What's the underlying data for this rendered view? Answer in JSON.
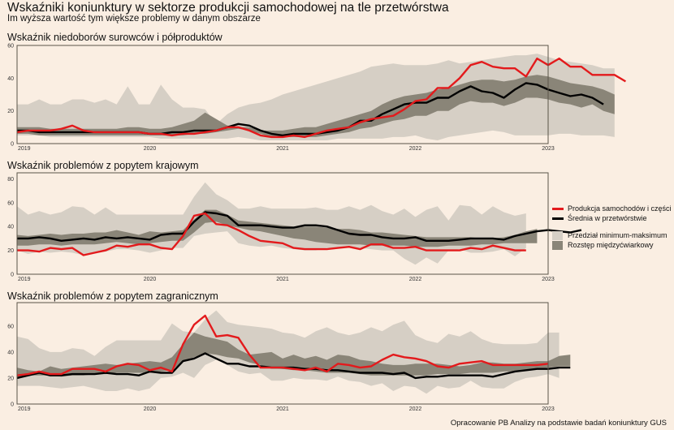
{
  "header": {
    "title": "Wskaźniki koniunktury w sektorze produkcji samochodowej na tle przetwórstwa",
    "subtitle": "Im wyższa wartość tym większe problemy w danym obszarze"
  },
  "source": "Opracowanie PB Analizy na podstawie badań koniunktury GUS",
  "legend": {
    "items": [
      {
        "label": "Produkcja samochodów i części",
        "kind": "line",
        "color": "#e31a1c"
      },
      {
        "label": "Średnia w przetwórstwie",
        "kind": "line",
        "color": "#000000"
      },
      {
        "label": "Przedział minimum-maksimum",
        "kind": "band",
        "color": "#d6cfc5"
      },
      {
        "label": "Rozstęp międzyćwiarkowy",
        "kind": "band",
        "color": "#8a8578"
      }
    ]
  },
  "colors": {
    "background": "#faeee2",
    "auto": "#e31a1c",
    "mean": "#000000",
    "minmax": "#d6cfc5",
    "iqr": "#8a8578"
  },
  "chart_data": [
    {
      "type": "line",
      "title": "Wskaźnik niedoborów surowców i półproduktów",
      "x_start": "2019-01",
      "x_end": "2022-11",
      "frequency": "monthly",
      "xticks": [
        "2019",
        "2020",
        "2021",
        "2022",
        "2023"
      ],
      "yticks": [
        0,
        20,
        40,
        60
      ],
      "ylim": [
        0,
        60
      ],
      "series": [
        {
          "name": "Produkcja samochodów i części",
          "values": [
            7,
            8,
            8,
            8,
            9,
            11,
            8,
            7,
            7,
            7,
            7,
            7,
            6,
            6,
            5,
            6,
            6,
            7,
            8,
            10,
            10,
            8,
            5,
            4,
            4,
            5,
            4,
            6,
            8,
            9,
            10,
            13,
            15,
            16,
            17,
            21,
            26,
            27,
            34,
            34,
            40,
            48,
            50,
            47,
            46,
            46,
            41,
            52,
            48,
            52,
            47,
            47,
            42,
            42,
            42,
            38
          ]
        },
        {
          "name": "Średnia w przetwórstwie",
          "values": [
            8,
            8,
            7,
            7,
            7,
            7,
            7,
            7,
            7,
            7,
            7,
            7,
            6,
            6,
            7,
            7,
            8,
            8,
            8,
            10,
            12,
            11,
            8,
            6,
            5,
            6,
            6,
            6,
            7,
            8,
            10,
            14,
            14,
            18,
            21,
            24,
            25,
            25,
            28,
            28,
            32,
            35,
            32,
            31,
            28,
            33,
            37,
            36,
            33,
            31,
            29,
            30,
            28,
            24
          ]
        },
        {
          "name": "Min",
          "values": [
            5,
            5,
            5,
            4,
            4,
            4,
            4,
            4,
            4,
            4,
            4,
            4,
            4,
            3,
            3,
            3,
            3,
            3,
            3,
            3,
            4,
            3,
            2,
            2,
            2,
            2,
            2,
            2,
            2,
            3,
            3,
            3,
            3,
            3,
            4,
            4,
            5,
            3,
            2,
            4,
            5,
            6,
            7,
            8,
            7,
            5,
            5,
            5,
            5,
            6,
            6,
            5,
            5,
            5,
            4,
            2,
            1
          ]
        },
        {
          "name": "Max",
          "values": [
            24,
            24,
            27,
            24,
            24,
            27,
            27,
            25,
            27,
            24,
            35,
            24,
            24,
            36,
            27,
            22,
            22,
            21,
            12,
            18,
            22,
            24,
            25,
            27,
            30,
            32,
            34,
            36,
            38,
            40,
            42,
            44,
            47,
            48,
            49,
            48,
            48,
            48,
            49,
            51,
            49,
            50,
            51,
            52,
            53,
            54,
            54,
            55,
            53,
            51,
            50,
            49,
            48,
            46,
            46
          ]
        },
        {
          "name": "Q1",
          "values": [
            6,
            6,
            5,
            5,
            5,
            5,
            5,
            5,
            5,
            5,
            5,
            5,
            5,
            5,
            5,
            5,
            6,
            6,
            7,
            8,
            9,
            8,
            6,
            4,
            4,
            4,
            4,
            4,
            5,
            6,
            7,
            9,
            10,
            12,
            14,
            15,
            17,
            17,
            20,
            20,
            24,
            26,
            25,
            25,
            23,
            25,
            28,
            28,
            27,
            25,
            24,
            22,
            24,
            20,
            18,
            17
          ]
        },
        {
          "name": "Q3",
          "values": [
            10,
            10,
            10,
            9,
            9,
            9,
            9,
            9,
            9,
            9,
            10,
            10,
            9,
            9,
            10,
            12,
            14,
            19,
            15,
            11,
            10,
            10,
            8,
            8,
            8,
            9,
            10,
            10,
            12,
            14,
            16,
            18,
            20,
            24,
            27,
            29,
            30,
            31,
            33,
            34,
            36,
            38,
            39,
            39,
            38,
            39,
            41,
            42,
            41,
            39,
            37,
            36,
            35,
            33,
            30
          ]
        }
      ]
    },
    {
      "type": "line",
      "title": "Wskaźnik problemów z popytem krajowym",
      "x_start": "2019-01",
      "x_end": "2022-11",
      "frequency": "monthly",
      "xticks": [
        "2019",
        "2020",
        "2021",
        "2022",
        "2023"
      ],
      "yticks": [
        0,
        20,
        40,
        60,
        80
      ],
      "ylim": [
        0,
        85
      ],
      "series": [
        {
          "name": "Produkcja samochodów i części",
          "values": [
            20,
            20,
            19,
            22,
            21,
            22,
            16,
            18,
            20,
            24,
            23,
            25,
            25,
            22,
            21,
            32,
            49,
            51,
            42,
            41,
            37,
            32,
            28,
            27,
            26,
            22,
            21,
            21,
            21,
            22,
            23,
            21,
            25,
            25,
            22,
            22,
            23,
            20,
            20,
            20,
            20,
            22,
            21,
            24,
            22,
            20,
            20
          ]
        },
        {
          "name": "Średnia w przetwórstwie",
          "values": [
            30,
            30,
            31,
            30,
            28,
            29,
            30,
            29,
            31,
            30,
            31,
            30,
            29,
            33,
            34,
            34,
            44,
            52,
            51,
            49,
            41,
            41,
            41,
            40,
            39,
            39,
            41,
            41,
            40,
            37,
            34,
            33,
            33,
            31,
            30,
            30,
            31,
            28,
            28,
            28,
            29,
            30,
            30,
            30,
            29,
            32,
            34,
            36,
            37,
            36,
            35,
            37
          ]
        },
        {
          "name": "Min",
          "values": [
            20,
            17,
            19,
            18,
            19,
            18,
            16,
            18,
            19,
            21,
            21,
            20,
            18,
            20,
            22,
            22,
            32,
            34,
            35,
            36,
            26,
            24,
            23,
            24,
            22,
            21,
            20,
            20,
            22,
            22,
            23,
            22,
            21,
            20,
            20,
            13,
            8,
            14,
            9,
            20,
            21,
            18,
            18,
            19,
            21,
            15,
            22
          ]
        },
        {
          "name": "Max",
          "values": [
            57,
            50,
            53,
            50,
            52,
            57,
            56,
            50,
            56,
            50,
            50,
            50,
            50,
            50,
            50,
            50,
            65,
            77,
            67,
            62,
            55,
            55,
            57,
            55,
            55,
            55,
            55,
            56,
            54,
            54,
            57,
            54,
            58,
            53,
            50,
            55,
            48,
            54,
            57,
            45,
            58,
            57,
            50,
            57,
            52,
            49,
            51,
            54,
            56,
            58
          ]
        },
        {
          "name": "Q1",
          "values": [
            24,
            24,
            25,
            25,
            24,
            25,
            25,
            25,
            26,
            27,
            26,
            25,
            26,
            27,
            28,
            28,
            35,
            43,
            44,
            41,
            39,
            37,
            36,
            34,
            32,
            30,
            29,
            27,
            26,
            25,
            25,
            25,
            24,
            24,
            24,
            24,
            23,
            23,
            23,
            24,
            24,
            24,
            25,
            25,
            26,
            26,
            26,
            26
          ]
        },
        {
          "name": "Q3",
          "values": [
            33,
            32,
            33,
            34,
            33,
            34,
            34,
            35,
            35,
            37,
            35,
            33,
            36,
            35,
            36,
            37,
            46,
            54,
            54,
            50,
            45,
            44,
            43,
            42,
            41,
            40,
            40,
            40,
            39,
            38,
            38,
            37,
            35,
            35,
            34,
            33,
            32,
            31,
            31,
            31,
            31,
            31,
            30,
            30,
            31,
            33,
            36,
            38,
            40,
            42,
            43,
            44
          ]
        }
      ]
    },
    {
      "type": "line",
      "title": "Wskaźnik problemów z popytem zagranicznym",
      "x_start": "2019-01",
      "x_end": "2022-11",
      "frequency": "monthly",
      "xticks": [
        "2019",
        "2020",
        "2021",
        "2022",
        "2023"
      ],
      "yticks": [
        0,
        20,
        40,
        60
      ],
      "ylim": [
        0,
        78
      ],
      "series": [
        {
          "name": "Produkcja samochodów i części",
          "values": [
            22,
            23,
            25,
            23,
            23,
            27,
            27,
            27,
            25,
            29,
            31,
            30,
            26,
            28,
            25,
            46,
            61,
            68,
            52,
            53,
            51,
            38,
            28,
            28,
            28,
            27,
            26,
            28,
            25,
            31,
            30,
            28,
            29,
            34,
            38,
            36,
            35,
            33,
            29,
            28,
            31,
            32,
            33,
            30,
            30,
            30,
            30,
            30,
            31
          ]
        },
        {
          "name": "Średnia w przetwórstwie",
          "values": [
            20,
            22,
            24,
            22,
            22,
            23,
            23,
            23,
            24,
            23,
            23,
            22,
            25,
            24,
            24,
            33,
            35,
            39,
            35,
            31,
            31,
            29,
            29,
            28,
            28,
            28,
            27,
            27,
            26,
            26,
            25,
            24,
            24,
            24,
            23,
            24,
            20,
            21,
            21,
            22,
            22,
            22,
            22,
            21,
            23,
            25,
            26,
            27,
            27,
            28,
            28
          ]
        },
        {
          "name": "Min",
          "values": [
            14,
            14,
            14,
            13,
            12,
            13,
            14,
            12,
            10,
            10,
            12,
            10,
            12,
            20,
            21,
            24,
            20,
            30,
            34,
            30,
            25,
            23,
            24,
            18,
            18,
            20,
            19,
            19,
            18,
            21,
            18,
            17,
            14,
            16,
            10,
            14,
            13,
            8,
            14,
            12,
            13,
            18,
            13,
            12,
            12,
            17,
            20,
            21,
            23,
            20
          ]
        },
        {
          "name": "Max",
          "values": [
            52,
            50,
            43,
            40,
            40,
            43,
            42,
            37,
            44,
            49,
            49,
            49,
            49,
            49,
            62,
            56,
            55,
            65,
            72,
            63,
            61,
            60,
            59,
            58,
            55,
            54,
            51,
            56,
            59,
            55,
            53,
            55,
            59,
            56,
            61,
            64,
            53,
            49,
            47,
            54,
            52,
            56,
            50,
            47,
            46,
            46,
            46,
            47,
            55,
            55,
            53
          ]
        },
        {
          "name": "Q1",
          "values": [
            20,
            22,
            22,
            22,
            21,
            22,
            22,
            23,
            23,
            24,
            24,
            24,
            24,
            25,
            26,
            33,
            36,
            39,
            38,
            36,
            35,
            32,
            30,
            28,
            27,
            26,
            26,
            25,
            24,
            24,
            24,
            23,
            22,
            22,
            22,
            22,
            22,
            22,
            23,
            23,
            23,
            24,
            24,
            24,
            25,
            25,
            26,
            27,
            28,
            29,
            29
          ]
        },
        {
          "name": "Q3",
          "values": [
            28,
            26,
            25,
            29,
            27,
            28,
            29,
            30,
            31,
            30,
            31,
            32,
            33,
            32,
            36,
            46,
            55,
            52,
            50,
            48,
            42,
            38,
            39,
            40,
            35,
            38,
            35,
            37,
            34,
            38,
            37,
            34,
            33,
            31,
            30,
            30,
            31,
            31,
            31,
            30,
            29,
            30,
            32,
            32,
            31,
            31,
            32,
            33,
            33,
            37,
            38
          ]
        }
      ]
    }
  ]
}
